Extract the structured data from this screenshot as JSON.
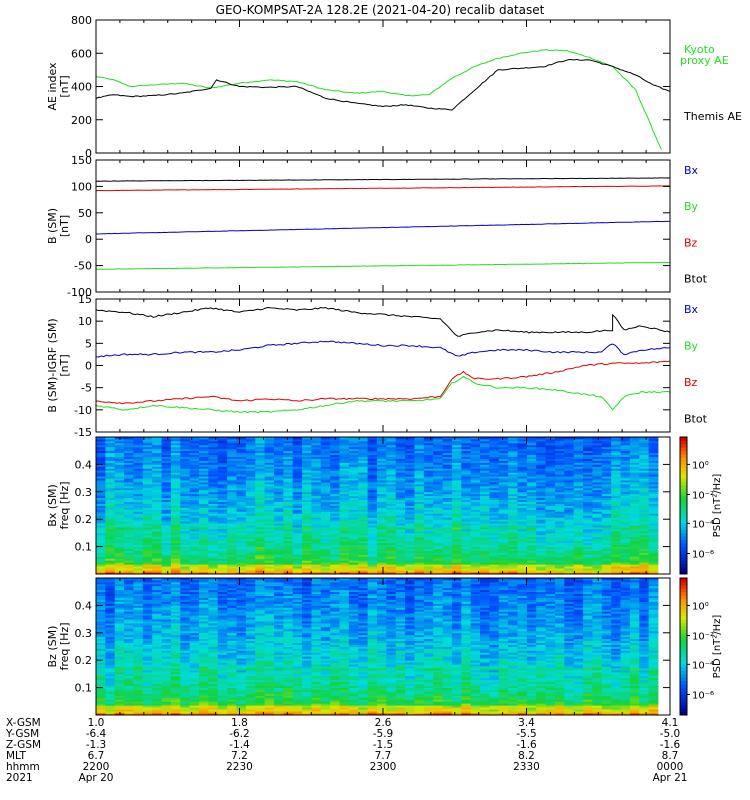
{
  "title": "GEO-KOMPSAT-2A 128.2E (2021-04-20) recalib dataset",
  "colors": {
    "black": "#000000",
    "green": "#22dd22",
    "red": "#dd0000",
    "blue": "#0000cc"
  },
  "chart_data": [
    {
      "type": "line",
      "panel": "AE index",
      "ylabel": "AE index\n[nT]",
      "ylim": [
        0,
        800
      ],
      "yticks": [
        0,
        200,
        400,
        600,
        800
      ],
      "series": [
        {
          "name": "Kyoto proxy AE",
          "color": "green",
          "x": [
            0,
            0.03,
            0.06,
            0.1,
            0.15,
            0.2,
            0.25,
            0.3,
            0.35,
            0.4,
            0.45,
            0.5,
            0.54,
            0.58,
            0.62,
            0.66,
            0.7,
            0.74,
            0.78,
            0.82,
            0.86,
            0.9,
            0.94,
            0.965,
            0.985
          ],
          "y": [
            460,
            440,
            400,
            410,
            420,
            390,
            420,
            440,
            430,
            380,
            360,
            370,
            345,
            350,
            450,
            520,
            570,
            600,
            620,
            615,
            575,
            520,
            380,
            180,
            20
          ]
        },
        {
          "name": "Themis AE",
          "color": "black",
          "x": [
            0,
            0.03,
            0.06,
            0.1,
            0.15,
            0.2,
            0.21,
            0.25,
            0.3,
            0.35,
            0.4,
            0.45,
            0.5,
            0.54,
            0.58,
            0.62,
            0.66,
            0.7,
            0.74,
            0.78,
            0.82,
            0.86,
            0.9,
            0.94,
            0.97,
            1.0
          ],
          "y": [
            330,
            350,
            340,
            345,
            360,
            390,
            440,
            400,
            395,
            400,
            330,
            300,
            280,
            290,
            270,
            260,
            380,
            500,
            510,
            520,
            560,
            560,
            520,
            470,
            410,
            370
          ]
        }
      ]
    },
    {
      "type": "line",
      "panel": "B (SM)",
      "ylabel": "B (SM)\n[nT]",
      "ylim": [
        -100,
        150
      ],
      "yticks": [
        -100,
        -50,
        0,
        50,
        100,
        150
      ],
      "series": [
        {
          "name": "Bx",
          "color": "black",
          "x": [
            0,
            1
          ],
          "y": [
            110,
            116
          ]
        },
        {
          "name": "By",
          "color": "red",
          "x": [
            0,
            1
          ],
          "y": [
            92,
            101
          ]
        },
        {
          "name": "Bz",
          "color": "blue",
          "x": [
            0,
            1
          ],
          "y": [
            10,
            34
          ]
        },
        {
          "name": "Btot",
          "color": "green",
          "x": [
            0,
            1
          ],
          "y": [
            -57,
            -44
          ]
        }
      ],
      "legend": [
        "Bx",
        "By",
        "Bz",
        "Btot"
      ]
    },
    {
      "type": "line",
      "panel": "B (SM)-IGRF (SM)",
      "ylabel": "B (SM)-IGRF (SM)\n[nT]",
      "ylim": [
        -15,
        15
      ],
      "yticks": [
        -15,
        -10,
        -5,
        0,
        5,
        10,
        15
      ],
      "series": [
        {
          "name": "Bx",
          "color": "black",
          "x": [
            0,
            0.05,
            0.1,
            0.15,
            0.2,
            0.25,
            0.3,
            0.35,
            0.4,
            0.45,
            0.5,
            0.55,
            0.6,
            0.63,
            0.66,
            0.7,
            0.75,
            0.8,
            0.85,
            0.9,
            0.9,
            0.92,
            0.95,
            1.0
          ],
          "y": [
            12.5,
            12,
            11,
            12,
            13,
            12,
            13,
            12.5,
            13,
            12,
            11.5,
            11,
            10.5,
            6.5,
            7.5,
            8,
            7.5,
            7.5,
            7.5,
            8,
            11.5,
            8,
            9,
            7.5
          ]
        },
        {
          "name": "By",
          "color": "blue",
          "x": [
            0,
            0.05,
            0.1,
            0.15,
            0.2,
            0.25,
            0.3,
            0.35,
            0.4,
            0.45,
            0.5,
            0.55,
            0.6,
            0.63,
            0.66,
            0.7,
            0.75,
            0.8,
            0.85,
            0.88,
            0.9,
            0.92,
            0.95,
            1.0
          ],
          "y": [
            2,
            2.5,
            2.5,
            3,
            3,
            3.5,
            4.5,
            5,
            5.5,
            5,
            4.5,
            4.5,
            4,
            2,
            3,
            3.5,
            3.5,
            3,
            3,
            3,
            5,
            2.5,
            3.5,
            4
          ]
        },
        {
          "name": "Bz",
          "color": "red",
          "x": [
            0,
            0.05,
            0.1,
            0.15,
            0.2,
            0.25,
            0.3,
            0.35,
            0.4,
            0.45,
            0.5,
            0.55,
            0.6,
            0.62,
            0.64,
            0.66,
            0.7,
            0.75,
            0.8,
            0.85,
            0.9,
            0.95,
            1.0
          ],
          "y": [
            -8,
            -8.5,
            -8,
            -7.5,
            -7,
            -8,
            -7.5,
            -8,
            -7.5,
            -7.5,
            -7.5,
            -7.5,
            -7,
            -3,
            -1.5,
            -3,
            -3,
            -2.5,
            -1.5,
            0,
            0.5,
            0.5,
            1
          ]
        },
        {
          "name": "Btot",
          "color": "green",
          "x": [
            0,
            0.05,
            0.1,
            0.15,
            0.2,
            0.25,
            0.3,
            0.35,
            0.4,
            0.45,
            0.5,
            0.55,
            0.6,
            0.62,
            0.64,
            0.66,
            0.7,
            0.75,
            0.8,
            0.85,
            0.88,
            0.9,
            0.92,
            0.95,
            1.0
          ],
          "y": [
            -9,
            -10,
            -9,
            -9.5,
            -10,
            -10.5,
            -10.5,
            -10,
            -9,
            -8,
            -8,
            -8,
            -7.5,
            -4,
            -2.5,
            -4,
            -5,
            -5,
            -5.5,
            -6.5,
            -7,
            -10,
            -7,
            -6,
            -6
          ]
        }
      ],
      "legend": [
        "Bx",
        "By",
        "Bz",
        "Btot"
      ]
    },
    {
      "type": "heatmap",
      "panel": "Bx (SM)",
      "ylabel": "Bx (SM)\nfreq [Hz]",
      "ylim": [
        0,
        0.5
      ],
      "yticks": [
        0.1,
        0.2,
        0.3,
        0.4
      ],
      "colorbar": {
        "label": "PSD [nT²/Hz]",
        "ticks": [
          "10⁰",
          "10⁻²",
          "10⁻⁴",
          "10⁻⁶"
        ]
      }
    },
    {
      "type": "heatmap",
      "panel": "Bz (SM)",
      "ylabel": "Bz (SM)\nfreq [Hz]",
      "ylim": [
        0,
        0.5
      ],
      "yticks": [
        0.1,
        0.2,
        0.3,
        0.4
      ],
      "colorbar": {
        "label": "PSD [nT²/Hz]",
        "ticks": [
          "10⁰",
          "10⁻²",
          "10⁻⁴",
          "10⁻⁶"
        ]
      }
    }
  ],
  "xaxis": {
    "row_labels": [
      "X-GSM",
      "Y-GSM",
      "Z-GSM",
      "MLT",
      "hhmm",
      "2021"
    ],
    "ticks": [
      {
        "rows": [
          "1.0",
          "-6.4",
          "-1.3",
          "6.7",
          "2200",
          "Apr 20"
        ]
      },
      {
        "rows": [
          "1.8",
          "-6.2",
          "-1.4",
          "7.2",
          "2230",
          ""
        ]
      },
      {
        "rows": [
          "2.6",
          "-5.9",
          "-1.5",
          "7.7",
          "2300",
          ""
        ]
      },
      {
        "rows": [
          "3.4",
          "-5.5",
          "-1.6",
          "8.2",
          "2330",
          ""
        ]
      },
      {
        "rows": [
          "4.1",
          "-5.0",
          "-1.6",
          "8.7",
          "0000",
          "Apr 21"
        ]
      }
    ]
  }
}
